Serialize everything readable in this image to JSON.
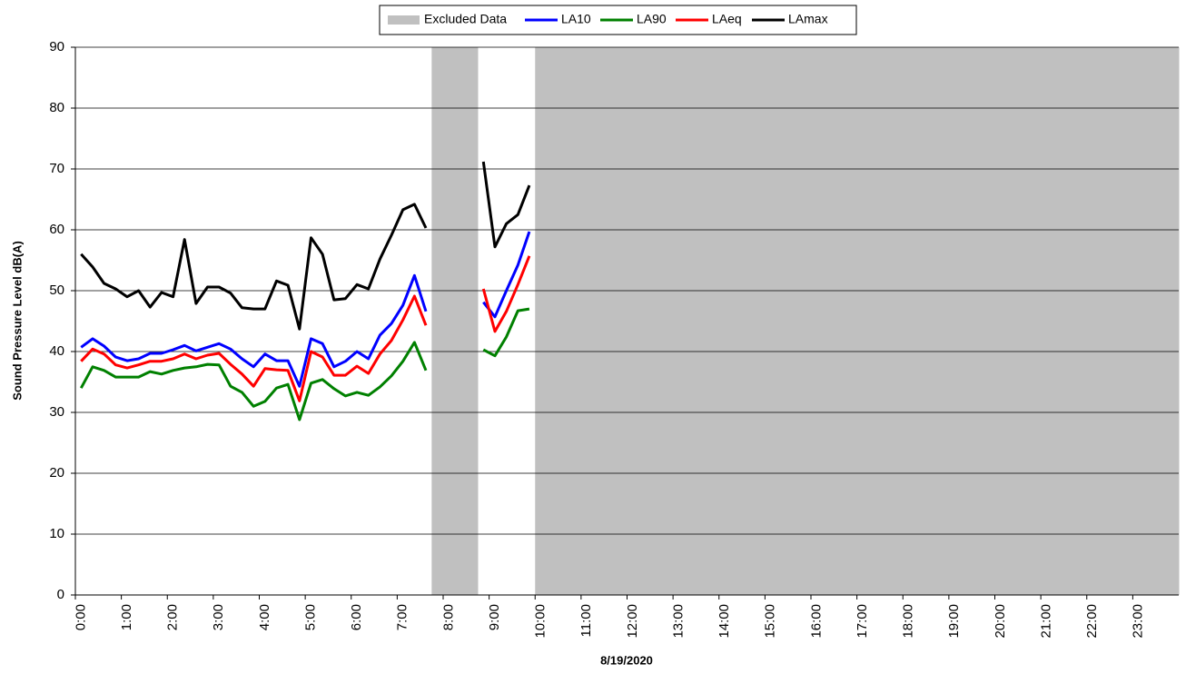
{
  "chart_data": {
    "type": "line",
    "x_label": "8/19/2020",
    "y_label": "Sound Pressure Level dB(A)",
    "categories": [
      "0:00",
      null,
      null,
      null,
      "1:00",
      null,
      null,
      null,
      "2:00",
      null,
      null,
      null,
      "3:00",
      null,
      null,
      null,
      "4:00",
      null,
      null,
      null,
      "5:00",
      null,
      null,
      null,
      "6:00",
      null,
      null,
      null,
      "7:00",
      null,
      null,
      null,
      "8:00",
      null,
      null,
      null,
      "9:00",
      null,
      null,
      null,
      "10:00",
      null,
      null,
      null,
      "11:00",
      null,
      null,
      null,
      "12:00",
      null,
      null,
      null,
      "13:00",
      null,
      null,
      null,
      "14:00",
      null,
      null,
      null,
      "15:00",
      null,
      null,
      null,
      "16:00",
      null,
      null,
      null,
      "17:00",
      null,
      null,
      null,
      "18:00",
      null,
      null,
      null,
      "19:00",
      null,
      null,
      null,
      "20:00",
      null,
      null,
      null,
      "21:00",
      null,
      null,
      null,
      "22:00",
      null,
      null,
      null,
      "23:00",
      null,
      null,
      null
    ],
    "ylim": [
      0,
      90
    ],
    "yticks": [
      0,
      10,
      20,
      30,
      40,
      50,
      60,
      70,
      80,
      90
    ],
    "grid": true,
    "legend": "top",
    "series": [
      {
        "name": "Excluded Data",
        "type": "bar",
        "color": "#c0c0c0",
        "values": [
          null,
          null,
          null,
          null,
          null,
          null,
          null,
          null,
          null,
          null,
          null,
          null,
          null,
          null,
          null,
          null,
          null,
          null,
          null,
          null,
          null,
          null,
          null,
          null,
          null,
          null,
          null,
          null,
          null,
          null,
          null,
          90,
          90,
          90,
          90,
          null,
          null,
          null,
          null,
          null,
          90,
          90,
          90,
          90,
          90,
          90,
          90,
          90,
          90,
          90,
          90,
          90,
          90,
          90,
          90,
          90,
          90,
          90,
          90,
          90,
          90,
          90,
          90,
          90,
          90,
          90,
          90,
          90,
          90,
          90,
          90,
          90,
          90,
          90,
          90,
          90,
          90,
          90,
          90,
          90,
          90,
          90,
          90,
          90,
          90,
          90,
          90,
          90,
          90,
          90,
          90,
          90,
          90,
          90,
          90,
          90
        ]
      },
      {
        "name": "LA10",
        "color": "#0000ff",
        "values": [
          40.7,
          42.1,
          40.9,
          39.1,
          38.5,
          38.8,
          39.7,
          39.7,
          40.3,
          41.0,
          40.1,
          40.7,
          41.3,
          40.4,
          38.8,
          37.5,
          39.6,
          38.5,
          38.5,
          34.3,
          42.1,
          41.3,
          37.5,
          38.4,
          40.0,
          38.8,
          42.7,
          44.6,
          47.6,
          52.5,
          46.6,
          null,
          null,
          null,
          null,
          48.1,
          45.7,
          50.0,
          54.2,
          59.7,
          null,
          null,
          null,
          null,
          null,
          null,
          null,
          null,
          null,
          null,
          null,
          null,
          null,
          null,
          null,
          null,
          null,
          null,
          null,
          null,
          null,
          null,
          null,
          null,
          null,
          null,
          null,
          null,
          null,
          null,
          null,
          null,
          null,
          null,
          null,
          null,
          null,
          null,
          null,
          null,
          null,
          null,
          null,
          null,
          null,
          null,
          null,
          null,
          null,
          null,
          null,
          null,
          null,
          null,
          null,
          null
        ]
      },
      {
        "name": "LA90",
        "color": "#008000",
        "values": [
          34.0,
          37.5,
          36.9,
          35.8,
          35.8,
          35.8,
          36.7,
          36.3,
          36.9,
          37.3,
          37.5,
          37.9,
          37.8,
          34.3,
          33.3,
          31.0,
          31.8,
          34.0,
          34.6,
          28.8,
          34.8,
          35.4,
          33.9,
          32.7,
          33.3,
          32.8,
          34.2,
          36.0,
          38.4,
          41.5,
          36.9,
          null,
          null,
          null,
          null,
          40.3,
          39.3,
          42.4,
          46.7,
          47.0,
          null,
          null,
          null,
          null,
          null,
          null,
          null,
          null,
          null,
          null,
          null,
          null,
          null,
          null,
          null,
          null,
          null,
          null,
          null,
          null,
          null,
          null,
          null,
          null,
          null,
          null,
          null,
          null,
          null,
          null,
          null,
          null,
          null,
          null,
          null,
          null,
          null,
          null,
          null,
          null,
          null,
          null,
          null,
          null,
          null,
          null,
          null,
          null,
          null,
          null,
          null,
          null,
          null,
          null,
          null,
          null
        ]
      },
      {
        "name": "LAeq",
        "color": "#ff0000",
        "values": [
          38.4,
          40.4,
          39.6,
          37.8,
          37.3,
          37.8,
          38.4,
          38.4,
          38.8,
          39.6,
          38.8,
          39.4,
          39.7,
          37.9,
          36.3,
          34.3,
          37.2,
          37.0,
          36.9,
          31.9,
          40.0,
          39.1,
          36.1,
          36.1,
          37.6,
          36.4,
          39.6,
          41.8,
          45.2,
          49.1,
          44.3,
          null,
          null,
          null,
          null,
          50.3,
          43.3,
          46.6,
          51.0,
          55.7,
          null,
          null,
          null,
          null,
          null,
          null,
          null,
          null,
          null,
          null,
          null,
          null,
          null,
          null,
          null,
          null,
          null,
          null,
          null,
          null,
          null,
          null,
          null,
          null,
          null,
          null,
          null,
          null,
          null,
          null,
          null,
          null,
          null,
          null,
          null,
          null,
          null,
          null,
          null,
          null,
          null,
          null,
          null,
          null,
          null,
          null,
          null,
          null,
          null,
          null,
          null,
          null,
          null,
          null,
          null,
          null
        ]
      },
      {
        "name": "LAmax",
        "color": "#000000",
        "values": [
          56.0,
          53.9,
          51.2,
          50.3,
          49.0,
          50.0,
          47.3,
          49.7,
          49.0,
          58.4,
          47.9,
          50.6,
          50.6,
          49.6,
          47.2,
          47.0,
          47.0,
          51.6,
          50.9,
          43.7,
          58.7,
          56.0,
          48.5,
          48.7,
          51.0,
          50.3,
          55.2,
          59.1,
          63.3,
          64.2,
          60.3,
          null,
          null,
          null,
          null,
          71.2,
          57.2,
          61.0,
          62.5,
          67.3,
          null,
          null,
          null,
          null,
          null,
          null,
          null,
          null,
          null,
          null,
          null,
          null,
          null,
          null,
          null,
          null,
          null,
          null,
          null,
          null,
          null,
          null,
          null,
          null,
          null,
          null,
          null,
          null,
          null,
          null,
          null,
          null,
          null,
          null,
          null,
          null,
          null,
          null,
          null,
          null,
          null,
          null,
          null,
          null,
          null,
          null,
          null,
          null,
          null,
          null,
          null,
          null,
          null,
          null,
          null,
          null
        ]
      }
    ]
  }
}
